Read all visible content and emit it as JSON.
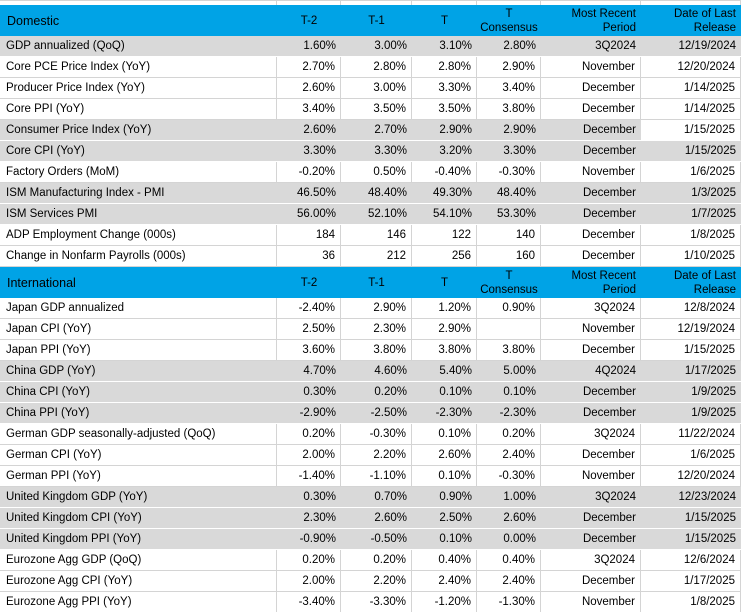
{
  "styles": {
    "header_bg": "#00A3E6",
    "shaded_row_bg": "#D9D9D9",
    "grid_color": "#D4D4D4",
    "text_color": "#000000"
  },
  "table": {
    "columns": [
      "T-2",
      "T-1",
      "T",
      "T Consensus",
      "Most Recent Period",
      "Date of Last Release"
    ],
    "sections": [
      {
        "title": "Domestic",
        "rows": [
          {
            "label": "GDP annualized (QoQ)",
            "t2": "1.60%",
            "t1": "3.00%",
            "t": "3.10%",
            "consensus": "2.80%",
            "period": "3Q2024",
            "release": "12/19/2024",
            "shaded": true
          },
          {
            "label": "Core PCE Price Index (YoY)",
            "t2": "2.70%",
            "t1": "2.80%",
            "t": "2.80%",
            "consensus": "2.90%",
            "period": "November",
            "release": "12/20/2024",
            "shaded": false
          },
          {
            "label": "Producer Price Index (YoY)",
            "t2": "2.60%",
            "t1": "3.00%",
            "t": "3.30%",
            "consensus": "3.40%",
            "period": "December",
            "release": "1/14/2025",
            "shaded": false
          },
          {
            "label": "Core PPI (YoY)",
            "t2": "3.40%",
            "t1": "3.50%",
            "t": "3.50%",
            "consensus": "3.80%",
            "period": "December",
            "release": "1/14/2025",
            "shaded": false
          },
          {
            "label": "Consumer Price Index (YoY)",
            "t2": "2.60%",
            "t1": "2.70%",
            "t": "2.90%",
            "consensus": "2.90%",
            "period": "December",
            "release": "1/15/2025",
            "shaded": true,
            "release_white": true
          },
          {
            "label": "Core CPI  (YoY)",
            "t2": "3.30%",
            "t1": "3.30%",
            "t": "3.20%",
            "consensus": "3.30%",
            "period": "December",
            "release": "1/15/2025",
            "shaded": true
          },
          {
            "label": "Factory Orders (MoM)",
            "t2": "-0.20%",
            "t1": "0.50%",
            "t": "-0.40%",
            "consensus": "-0.30%",
            "period": "November",
            "release": "1/6/2025",
            "shaded": false
          },
          {
            "label": "ISM Manufacturing Index - PMI",
            "t2": "46.50%",
            "t1": "48.40%",
            "t": "49.30%",
            "consensus": "48.40%",
            "period": "December",
            "release": "1/3/2025",
            "shaded": true
          },
          {
            "label": "ISM Services PMI",
            "t2": "56.00%",
            "t1": "52.10%",
            "t": "54.10%",
            "consensus": "53.30%",
            "period": "December",
            "release": "1/7/2025",
            "shaded": true
          },
          {
            "label": "ADP Employment Change (000s)",
            "t2": "184",
            "t1": "146",
            "t": "122",
            "consensus": "140",
            "period": "December",
            "release": "1/8/2025",
            "shaded": false
          },
          {
            "label": "Change in Nonfarm Payrolls (000s)",
            "t2": "36",
            "t1": "212",
            "t": "256",
            "consensus": "160",
            "period": "December",
            "release": "1/10/2025",
            "shaded": false
          }
        ]
      },
      {
        "title": "International",
        "rows": [
          {
            "label": "Japan GDP annualized",
            "t2": "-2.40%",
            "t1": "2.90%",
            "t": "1.20%",
            "consensus": "0.90%",
            "period": "3Q2024",
            "release": "12/8/2024",
            "shaded": false
          },
          {
            "label": "Japan CPI (YoY)",
            "t2": "2.50%",
            "t1": "2.30%",
            "t": "2.90%",
            "consensus": "",
            "period": "November",
            "release": "12/19/2024",
            "shaded": false
          },
          {
            "label": "Japan PPI (YoY)",
            "t2": "3.60%",
            "t1": "3.80%",
            "t": "3.80%",
            "consensus": "3.80%",
            "period": "December",
            "release": "1/15/2025",
            "shaded": false
          },
          {
            "label": "China GDP (YoY)",
            "t2": "4.70%",
            "t1": "4.60%",
            "t": "5.40%",
            "consensus": "5.00%",
            "period": "4Q2024",
            "release": "1/17/2025",
            "shaded": true
          },
          {
            "label": "China CPI (YoY)",
            "t2": "0.30%",
            "t1": "0.20%",
            "t": "0.10%",
            "consensus": "0.10%",
            "period": "December",
            "release": "1/9/2025",
            "shaded": true
          },
          {
            "label": "China PPI (YoY)",
            "t2": "-2.90%",
            "t1": "-2.50%",
            "t": "-2.30%",
            "consensus": "-2.30%",
            "period": "December",
            "release": "1/9/2025",
            "shaded": true
          },
          {
            "label": "German GDP seasonally-adjusted (QoQ)",
            "t2": "0.20%",
            "t1": "-0.30%",
            "t": "0.10%",
            "consensus": "0.20%",
            "period": "3Q2024",
            "release": "11/22/2024",
            "shaded": false
          },
          {
            "label": "German CPI (YoY)",
            "t2": "2.00%",
            "t1": "2.20%",
            "t": "2.60%",
            "consensus": "2.40%",
            "period": "December",
            "release": "1/6/2025",
            "shaded": false
          },
          {
            "label": "German PPI (YoY)",
            "t2": "-1.40%",
            "t1": "-1.10%",
            "t": "0.10%",
            "consensus": "-0.30%",
            "period": "November",
            "release": "12/20/2024",
            "shaded": false
          },
          {
            "label": "United Kingdom GDP (YoY)",
            "t2": "0.30%",
            "t1": "0.70%",
            "t": "0.90%",
            "consensus": "1.00%",
            "period": "3Q2024",
            "release": "12/23/2024",
            "shaded": true
          },
          {
            "label": "United Kingdom CPI (YoY)",
            "t2": "2.30%",
            "t1": "2.60%",
            "t": "2.50%",
            "consensus": "2.60%",
            "period": "December",
            "release": "1/15/2025",
            "shaded": true
          },
          {
            "label": "United Kingdom  PPI (YoY)",
            "t2": "-0.90%",
            "t1": "-0.50%",
            "t": "0.10%",
            "consensus": "0.00%",
            "period": "December",
            "release": "1/15/2025",
            "shaded": true
          },
          {
            "label": "Eurozone Agg GDP (QoQ)",
            "t2": "0.20%",
            "t1": "0.20%",
            "t": "0.40%",
            "consensus": "0.40%",
            "period": "3Q2024",
            "release": "12/6/2024",
            "shaded": false
          },
          {
            "label": "Eurozone Agg CPI (YoY)",
            "t2": "2.00%",
            "t1": "2.20%",
            "t": "2.40%",
            "consensus": "2.40%",
            "period": "December",
            "release": "1/17/2025",
            "shaded": false
          },
          {
            "label": "Eurozone Agg PPI (YoY)",
            "t2": "-3.40%",
            "t1": "-3.30%",
            "t": "-1.20%",
            "consensus": "-1.30%",
            "period": "November",
            "release": "1/8/2025",
            "shaded": false
          }
        ]
      }
    ]
  }
}
